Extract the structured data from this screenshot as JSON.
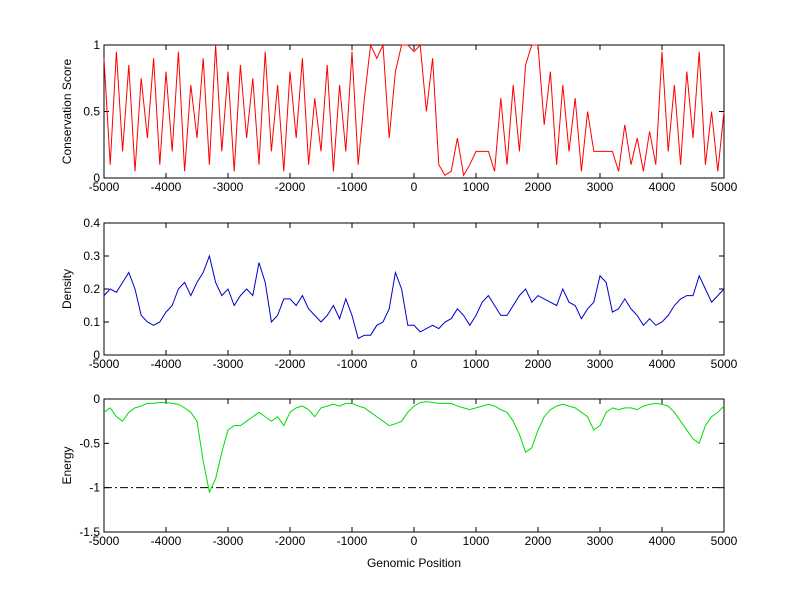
{
  "chart_data": [
    {
      "type": "line",
      "ylabel": "Conservation Score",
      "color": "#ff0000",
      "xlim": [
        -5000,
        5000
      ],
      "xticks": [
        -5000,
        -4000,
        -3000,
        -2000,
        -1000,
        0,
        1000,
        2000,
        3000,
        4000,
        5000
      ],
      "ylim": [
        0,
        1
      ],
      "yticks": [
        0,
        0.5,
        1
      ],
      "x": [
        -5000,
        -4900,
        -4800,
        -4700,
        -4600,
        -4500,
        -4400,
        -4300,
        -4200,
        -4100,
        -4000,
        -3900,
        -3800,
        -3700,
        -3600,
        -3500,
        -3400,
        -3300,
        -3200,
        -3100,
        -3000,
        -2900,
        -2800,
        -2700,
        -2600,
        -2500,
        -2400,
        -2300,
        -2200,
        -2100,
        -2000,
        -1900,
        -1800,
        -1700,
        -1600,
        -1500,
        -1400,
        -1300,
        -1200,
        -1100,
        -1000,
        -900,
        -800,
        -700,
        -600,
        -500,
        -400,
        -300,
        -200,
        -100,
        0,
        100,
        200,
        300,
        400,
        500,
        600,
        700,
        800,
        900,
        1000,
        1100,
        1200,
        1300,
        1400,
        1500,
        1600,
        1700,
        1800,
        1900,
        2000,
        2100,
        2200,
        2300,
        2400,
        2500,
        2600,
        2700,
        2800,
        2900,
        3000,
        3100,
        3200,
        3300,
        3400,
        3500,
        3600,
        3700,
        3800,
        3900,
        4000,
        4100,
        4200,
        4300,
        4400,
        4500,
        4600,
        4700,
        4800,
        4900,
        5000
      ],
      "values": [
        0.9,
        0.1,
        0.95,
        0.2,
        0.85,
        0.05,
        0.75,
        0.3,
        0.9,
        0.1,
        0.8,
        0.2,
        0.95,
        0.05,
        0.7,
        0.3,
        0.9,
        0.1,
        1,
        0.2,
        0.8,
        0.05,
        0.85,
        0.3,
        0.75,
        0.1,
        0.95,
        0.2,
        0.7,
        0.05,
        0.8,
        0.3,
        0.9,
        0.1,
        0.6,
        0.2,
        0.85,
        0.05,
        0.7,
        0.2,
        0.95,
        0.1,
        0.6,
        1,
        0.9,
        1,
        0.3,
        0.8,
        1,
        1,
        0.95,
        1,
        0.5,
        0.9,
        0.1,
        0.02,
        0.05,
        0.3,
        0.02,
        0.1,
        0.2,
        0.2,
        0.2,
        0.05,
        0.6,
        0.1,
        0.7,
        0.2,
        0.85,
        1,
        1,
        0.4,
        0.8,
        0.1,
        0.7,
        0.2,
        0.6,
        0.05,
        0.5,
        0.2,
        0.2,
        0.2,
        0.2,
        0.05,
        0.4,
        0.1,
        0.3,
        0.05,
        0.35,
        0.1,
        0.95,
        0.2,
        0.7,
        0.1,
        0.8,
        0.3,
        0.95,
        0.1,
        0.5,
        0.05,
        0.5
      ]
    },
    {
      "type": "line",
      "ylabel": "Density",
      "color": "#0000cc",
      "xlim": [
        -5000,
        5000
      ],
      "xticks": [
        -5000,
        -4000,
        -3000,
        -2000,
        -1000,
        0,
        1000,
        2000,
        3000,
        4000,
        5000
      ],
      "ylim": [
        0,
        0.4
      ],
      "yticks": [
        0,
        0.1,
        0.2,
        0.3,
        0.4
      ],
      "x": [
        -5000,
        -4900,
        -4800,
        -4700,
        -4600,
        -4500,
        -4400,
        -4300,
        -4200,
        -4100,
        -4000,
        -3900,
        -3800,
        -3700,
        -3600,
        -3500,
        -3400,
        -3300,
        -3200,
        -3100,
        -3000,
        -2900,
        -2800,
        -2700,
        -2600,
        -2500,
        -2400,
        -2300,
        -2200,
        -2100,
        -2000,
        -1900,
        -1800,
        -1700,
        -1600,
        -1500,
        -1400,
        -1300,
        -1200,
        -1100,
        -1000,
        -900,
        -800,
        -700,
        -600,
        -500,
        -400,
        -300,
        -200,
        -100,
        0,
        100,
        200,
        300,
        400,
        500,
        600,
        700,
        800,
        900,
        1000,
        1100,
        1200,
        1300,
        1400,
        1500,
        1600,
        1700,
        1800,
        1900,
        2000,
        2100,
        2200,
        2300,
        2400,
        2500,
        2600,
        2700,
        2800,
        2900,
        3000,
        3100,
        3200,
        3300,
        3400,
        3500,
        3600,
        3700,
        3800,
        3900,
        4000,
        4100,
        4200,
        4300,
        4400,
        4500,
        4600,
        4700,
        4800,
        4900,
        5000
      ],
      "values": [
        0.18,
        0.2,
        0.19,
        0.22,
        0.25,
        0.2,
        0.12,
        0.1,
        0.09,
        0.1,
        0.13,
        0.15,
        0.2,
        0.22,
        0.18,
        0.22,
        0.25,
        0.3,
        0.22,
        0.18,
        0.2,
        0.15,
        0.18,
        0.2,
        0.18,
        0.28,
        0.22,
        0.1,
        0.12,
        0.17,
        0.17,
        0.15,
        0.18,
        0.14,
        0.12,
        0.1,
        0.12,
        0.15,
        0.11,
        0.17,
        0.12,
        0.05,
        0.06,
        0.06,
        0.09,
        0.1,
        0.14,
        0.25,
        0.2,
        0.09,
        0.09,
        0.07,
        0.08,
        0.09,
        0.08,
        0.1,
        0.11,
        0.14,
        0.12,
        0.09,
        0.12,
        0.16,
        0.18,
        0.15,
        0.12,
        0.12,
        0.15,
        0.18,
        0.2,
        0.16,
        0.18,
        0.17,
        0.16,
        0.15,
        0.2,
        0.16,
        0.15,
        0.11,
        0.14,
        0.16,
        0.24,
        0.22,
        0.13,
        0.14,
        0.17,
        0.14,
        0.12,
        0.09,
        0.11,
        0.09,
        0.1,
        0.12,
        0.15,
        0.17,
        0.18,
        0.18,
        0.24,
        0.2,
        0.16,
        0.18,
        0.2
      ]
    },
    {
      "type": "line",
      "ylabel": "Energy",
      "xlabel": "Genomic Position",
      "color": "#00dd00",
      "xlim": [
        -5000,
        5000
      ],
      "xticks": [
        -5000,
        -4000,
        -3000,
        -2000,
        -1000,
        0,
        1000,
        2000,
        3000,
        4000,
        5000
      ],
      "ylim": [
        -1.5,
        0
      ],
      "yticks": [
        -1.5,
        -1,
        -0.5,
        0
      ],
      "reference_line": -1,
      "x": [
        -5000,
        -4900,
        -4800,
        -4700,
        -4600,
        -4500,
        -4400,
        -4300,
        -4200,
        -4100,
        -4000,
        -3900,
        -3800,
        -3700,
        -3600,
        -3500,
        -3400,
        -3300,
        -3200,
        -3100,
        -3000,
        -2900,
        -2800,
        -2700,
        -2600,
        -2500,
        -2400,
        -2300,
        -2200,
        -2100,
        -2000,
        -1900,
        -1800,
        -1700,
        -1600,
        -1500,
        -1400,
        -1300,
        -1200,
        -1100,
        -1000,
        -900,
        -800,
        -700,
        -600,
        -500,
        -400,
        -300,
        -200,
        -100,
        0,
        100,
        200,
        300,
        400,
        500,
        600,
        700,
        800,
        900,
        1000,
        1100,
        1200,
        1300,
        1400,
        1500,
        1600,
        1700,
        1800,
        1900,
        2000,
        2100,
        2200,
        2300,
        2400,
        2500,
        2600,
        2700,
        2800,
        2900,
        3000,
        3100,
        3200,
        3300,
        3400,
        3500,
        3600,
        3700,
        3800,
        3900,
        4000,
        4100,
        4200,
        4300,
        4400,
        4500,
        4600,
        4700,
        4800,
        4900,
        5000
      ],
      "values": [
        -0.15,
        -0.1,
        -0.2,
        -0.25,
        -0.15,
        -0.1,
        -0.08,
        -0.05,
        -0.05,
        -0.04,
        -0.04,
        -0.05,
        -0.06,
        -0.1,
        -0.15,
        -0.25,
        -0.7,
        -1.05,
        -0.9,
        -0.6,
        -0.35,
        -0.3,
        -0.3,
        -0.25,
        -0.2,
        -0.15,
        -0.2,
        -0.25,
        -0.2,
        -0.3,
        -0.15,
        -0.1,
        -0.08,
        -0.12,
        -0.2,
        -0.1,
        -0.08,
        -0.06,
        -0.08,
        -0.05,
        -0.05,
        -0.08,
        -0.1,
        -0.15,
        -0.2,
        -0.25,
        -0.3,
        -0.28,
        -0.25,
        -0.15,
        -0.08,
        -0.04,
        -0.03,
        -0.04,
        -0.05,
        -0.05,
        -0.05,
        -0.08,
        -0.1,
        -0.12,
        -0.1,
        -0.08,
        -0.06,
        -0.08,
        -0.12,
        -0.15,
        -0.25,
        -0.4,
        -0.6,
        -0.55,
        -0.35,
        -0.2,
        -0.12,
        -0.08,
        -0.06,
        -0.08,
        -0.1,
        -0.15,
        -0.2,
        -0.35,
        -0.3,
        -0.15,
        -0.1,
        -0.12,
        -0.1,
        -0.1,
        -0.12,
        -0.08,
        -0.06,
        -0.05,
        -0.06,
        -0.08,
        -0.15,
        -0.25,
        -0.35,
        -0.45,
        -0.5,
        -0.3,
        -0.2,
        -0.15,
        -0.08
      ]
    }
  ]
}
